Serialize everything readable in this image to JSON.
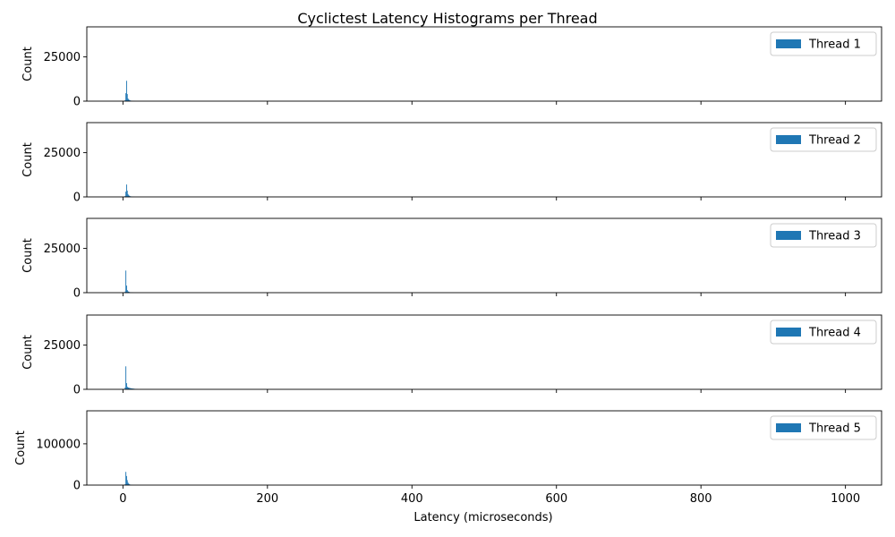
{
  "chart_data": {
    "type": "bar",
    "title": "Cyclictest Latency Histograms per Thread",
    "xlabel": "Latency (microseconds)",
    "x_ticks": [
      0,
      200,
      400,
      600,
      800,
      1000
    ],
    "xlim": [
      -50,
      1050
    ],
    "bar_color": "#1f77b4",
    "legend_placement": "upper right",
    "grid": false,
    "subplots": [
      {
        "name": "Thread 1",
        "ylabel": "Count",
        "ylim": [
          0,
          42000
        ],
        "y_ticks": [
          0,
          25000
        ],
        "bins": [
          {
            "x": 3,
            "y": 600
          },
          {
            "x": 4,
            "y": 4500
          },
          {
            "x": 5,
            "y": 11500
          },
          {
            "x": 6,
            "y": 4000
          },
          {
            "x": 7,
            "y": 1500
          },
          {
            "x": 8,
            "y": 900
          },
          {
            "x": 9,
            "y": 600
          },
          {
            "x": 10,
            "y": 400
          },
          {
            "x": 11,
            "y": 300
          },
          {
            "x": 12,
            "y": 200
          },
          {
            "x": 13,
            "y": 150
          },
          {
            "x": 14,
            "y": 100
          },
          {
            "x": 15,
            "y": 80
          },
          {
            "x": 16,
            "y": 60
          },
          {
            "x": 17,
            "y": 50
          }
        ]
      },
      {
        "name": "Thread 2",
        "ylabel": "Count",
        "ylim": [
          0,
          42000
        ],
        "y_ticks": [
          0,
          25000
        ],
        "bins": [
          {
            "x": 3,
            "y": 500
          },
          {
            "x": 4,
            "y": 3000
          },
          {
            "x": 5,
            "y": 7000
          },
          {
            "x": 6,
            "y": 3500
          },
          {
            "x": 7,
            "y": 1600
          },
          {
            "x": 8,
            "y": 900
          },
          {
            "x": 9,
            "y": 600
          },
          {
            "x": 10,
            "y": 400
          },
          {
            "x": 11,
            "y": 300
          },
          {
            "x": 12,
            "y": 200
          },
          {
            "x": 13,
            "y": 150
          },
          {
            "x": 14,
            "y": 100
          },
          {
            "x": 15,
            "y": 80
          },
          {
            "x": 16,
            "y": 60
          }
        ]
      },
      {
        "name": "Thread 3",
        "ylabel": "Count",
        "ylim": [
          0,
          42000
        ],
        "y_ticks": [
          0,
          25000
        ],
        "bins": [
          {
            "x": 3,
            "y": 600
          },
          {
            "x": 4,
            "y": 12500
          },
          {
            "x": 5,
            "y": 4000
          },
          {
            "x": 6,
            "y": 1500
          },
          {
            "x": 7,
            "y": 800
          },
          {
            "x": 8,
            "y": 500
          },
          {
            "x": 9,
            "y": 350
          },
          {
            "x": 10,
            "y": 250
          },
          {
            "x": 11,
            "y": 180
          },
          {
            "x": 12,
            "y": 120
          },
          {
            "x": 13,
            "y": 90
          },
          {
            "x": 14,
            "y": 60
          }
        ]
      },
      {
        "name": "Thread 4",
        "ylabel": "Count",
        "ylim": [
          0,
          42000
        ],
        "y_ticks": [
          0,
          25000
        ],
        "bins": [
          {
            "x": 3,
            "y": 1000
          },
          {
            "x": 4,
            "y": 13000
          },
          {
            "x": 5,
            "y": 3500
          },
          {
            "x": 6,
            "y": 1500
          },
          {
            "x": 7,
            "y": 1100
          },
          {
            "x": 8,
            "y": 900
          },
          {
            "x": 9,
            "y": 800
          },
          {
            "x": 10,
            "y": 700
          },
          {
            "x": 11,
            "y": 600
          },
          {
            "x": 12,
            "y": 500
          },
          {
            "x": 13,
            "y": 450
          },
          {
            "x": 14,
            "y": 400
          },
          {
            "x": 15,
            "y": 350
          },
          {
            "x": 16,
            "y": 300
          },
          {
            "x": 17,
            "y": 250
          },
          {
            "x": 18,
            "y": 200
          },
          {
            "x": 19,
            "y": 150
          },
          {
            "x": 20,
            "y": 100
          }
        ]
      },
      {
        "name": "Thread 5",
        "ylabel": "Count",
        "ylim": [
          0,
          180000
        ],
        "y_ticks": [
          0,
          100000
        ],
        "bins": [
          {
            "x": 3,
            "y": 2000
          },
          {
            "x": 4,
            "y": 32000
          },
          {
            "x": 5,
            "y": 22000
          },
          {
            "x": 6,
            "y": 12000
          },
          {
            "x": 7,
            "y": 6000
          },
          {
            "x": 8,
            "y": 3500
          },
          {
            "x": 9,
            "y": 2000
          },
          {
            "x": 10,
            "y": 1200
          },
          {
            "x": 11,
            "y": 800
          },
          {
            "x": 12,
            "y": 500
          },
          {
            "x": 13,
            "y": 300
          },
          {
            "x": 14,
            "y": 200
          }
        ]
      }
    ]
  }
}
